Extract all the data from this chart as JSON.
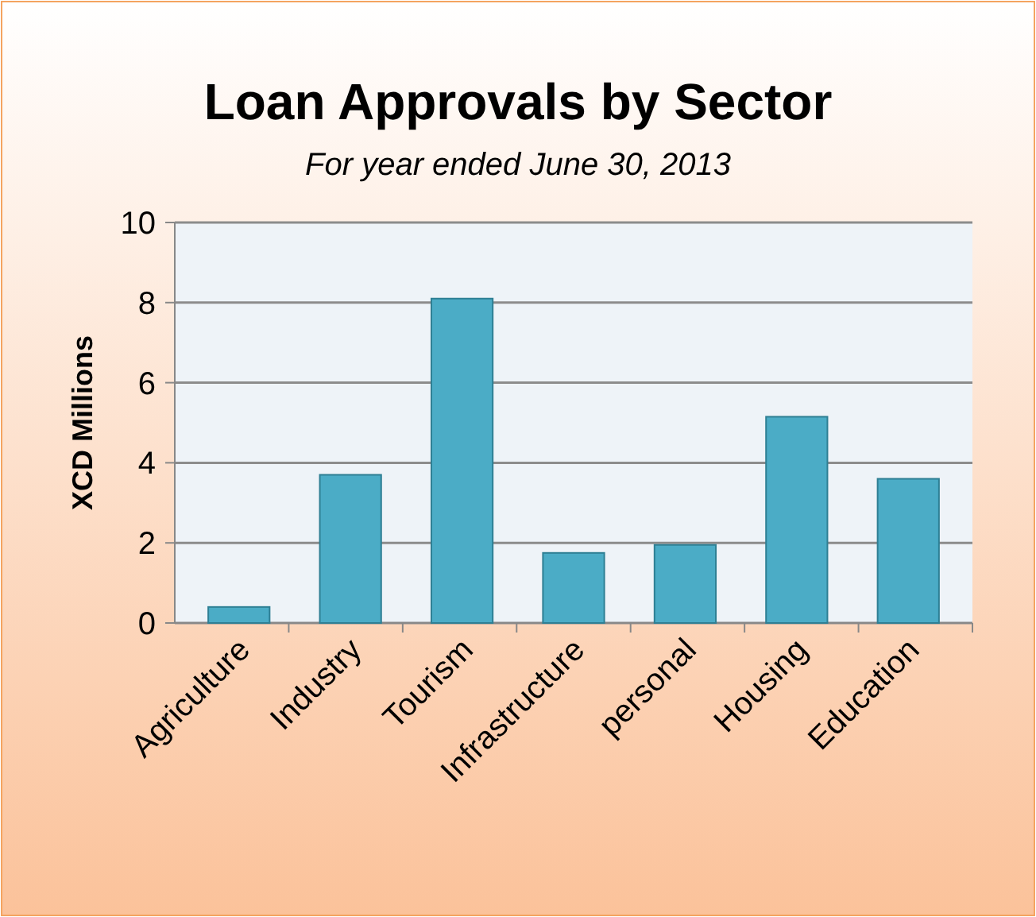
{
  "chart_data": {
    "type": "bar",
    "title": "Loan Approvals by Sector",
    "subtitle": "For year ended June 30, 2013",
    "ylabel": "XCD Millions",
    "categories": [
      "Agriculture",
      "Industry",
      "Tourism",
      "Infrastructure",
      "personal",
      "Housing",
      "Education"
    ],
    "values": [
      0.4,
      3.7,
      8.1,
      1.75,
      1.95,
      5.15,
      3.6
    ],
    "color": "#4bacc6",
    "ylim": [
      0,
      10
    ],
    "yticks": [
      0,
      2,
      4,
      6,
      8,
      10
    ],
    "grid": "y"
  }
}
